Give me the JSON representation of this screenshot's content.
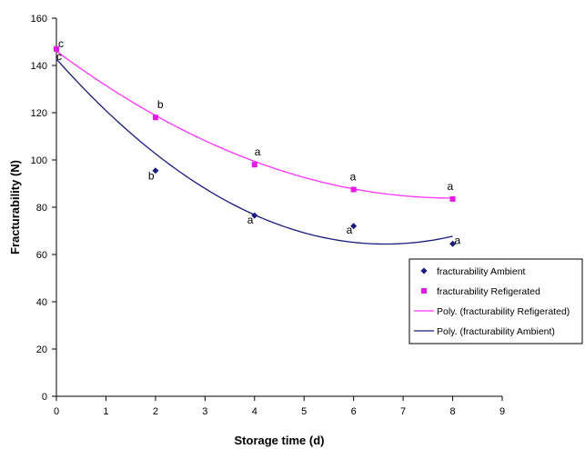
{
  "chart_data": {
    "type": "scatter",
    "xlabel": "Storage time (d)",
    "ylabel": "Fracturability (N)",
    "xlim": [
      0,
      9
    ],
    "ylim": [
      0,
      160
    ],
    "x_ticks": [
      0,
      1,
      2,
      3,
      4,
      5,
      6,
      7,
      8,
      9
    ],
    "y_ticks": [
      0,
      20,
      40,
      60,
      80,
      100,
      120,
      140,
      160
    ],
    "grid": false,
    "legend_position": "right",
    "series": [
      {
        "name": "fracturability Ambient",
        "marker": "diamond",
        "color": "#1a1a80",
        "x": [
          0,
          2,
          4,
          6,
          8
        ],
        "y": [
          147,
          95.5,
          76.5,
          72,
          64.5
        ],
        "labels": [
          "c",
          "b",
          "a",
          "a",
          "a"
        ]
      },
      {
        "name": "fracturability Refigerated",
        "marker": "square",
        "color": "#e619e6",
        "x": [
          0,
          2,
          4,
          6,
          8
        ],
        "y": [
          147,
          118,
          98,
          87.5,
          83.5
        ],
        "labels": [
          "c",
          "b",
          "a",
          "a",
          "a"
        ]
      }
    ],
    "trendlines": [
      {
        "name": "Poly. (fracturability Refigerated)",
        "color": "#ff33ff",
        "x": [
          0,
          2,
          4,
          6,
          8
        ],
        "y": [
          146,
          119,
          99.5,
          87.5,
          84
        ]
      },
      {
        "name": "Poly. (fracturability Ambient)",
        "color": "#1a1a80",
        "x": [
          0,
          2,
          4,
          6,
          8
        ],
        "y": [
          143,
          102,
          77,
          65.5,
          67.5
        ]
      }
    ]
  }
}
